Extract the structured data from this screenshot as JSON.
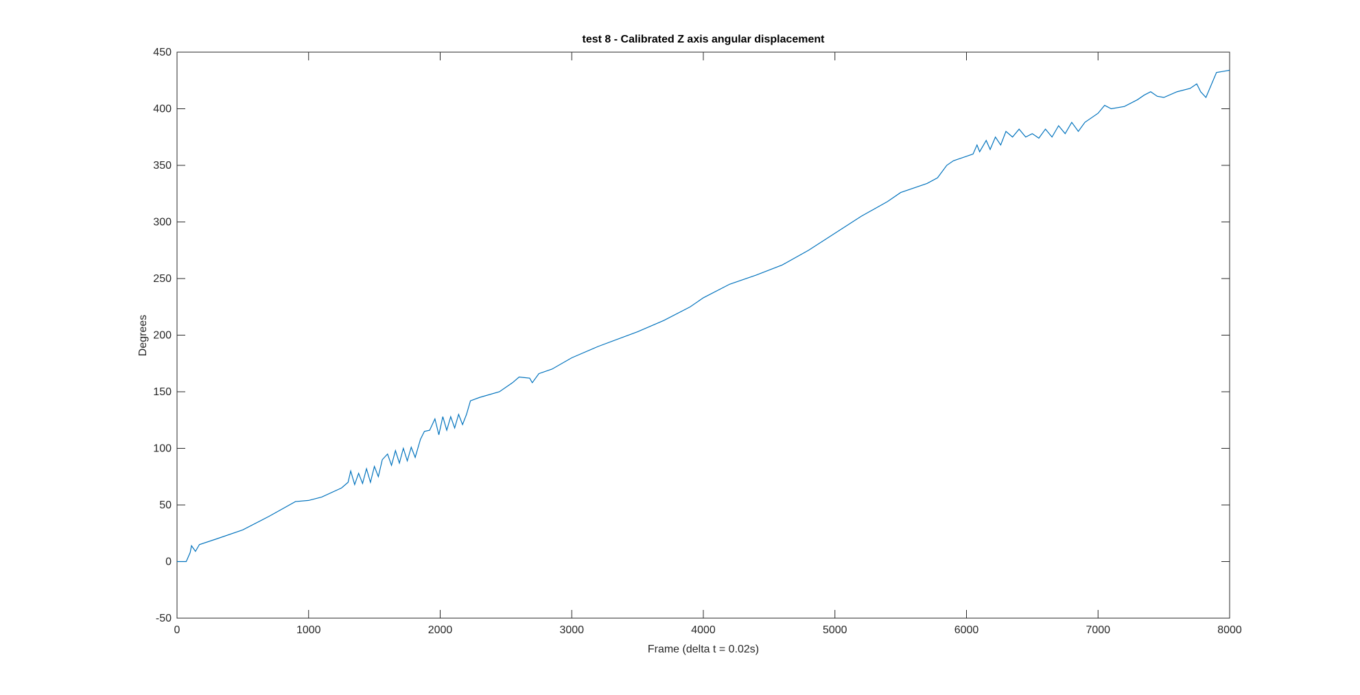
{
  "chart_data": {
    "type": "line",
    "title": "test 8 - Calibrated Z axis angular displacement",
    "x_label": "Frame (delta t = 0.02s)",
    "y_label": "Degrees",
    "xlim": [
      0,
      8000
    ],
    "xticks": [
      0,
      1000,
      2000,
      3000,
      4000,
      5000,
      6000,
      7000,
      8000
    ],
    "ylim": [
      -50,
      450
    ],
    "yticks": [
      -50,
      0,
      50,
      100,
      150,
      200,
      250,
      300,
      350,
      400,
      450
    ],
    "grid": false,
    "series": [
      {
        "color": "#0072bd",
        "x": [
          0,
          50,
          70,
          100,
          110,
          140,
          170,
          300,
          500,
          700,
          900,
          1000,
          1100,
          1250,
          1300,
          1320,
          1350,
          1380,
          1410,
          1440,
          1470,
          1500,
          1530,
          1560,
          1600,
          1630,
          1660,
          1690,
          1720,
          1750,
          1780,
          1810,
          1850,
          1880,
          1920,
          1960,
          1990,
          2020,
          2050,
          2080,
          2110,
          2140,
          2170,
          2200,
          2230,
          2300,
          2450,
          2550,
          2600,
          2680,
          2700,
          2750,
          2850,
          3000,
          3200,
          3500,
          3700,
          3900,
          4000,
          4200,
          4400,
          4600,
          4800,
          5000,
          5200,
          5400,
          5500,
          5700,
          5780,
          5850,
          5900,
          6000,
          6050,
          6080,
          6100,
          6150,
          6180,
          6220,
          6260,
          6300,
          6350,
          6400,
          6450,
          6500,
          6550,
          6600,
          6650,
          6700,
          6750,
          6800,
          6850,
          6900,
          7000,
          7050,
          7100,
          7200,
          7300,
          7350,
          7400,
          7450,
          7500,
          7600,
          7700,
          7750,
          7780,
          7820,
          7900,
          8000
        ],
        "values": [
          0,
          0,
          0,
          8,
          14,
          9,
          15,
          20,
          28,
          40,
          53,
          54,
          57,
          65,
          70,
          80,
          68,
          78,
          69,
          82,
          70,
          84,
          75,
          90,
          95,
          85,
          98,
          87,
          100,
          89,
          101,
          92,
          108,
          115,
          116,
          126,
          112,
          128,
          116,
          128,
          118,
          130,
          121,
          130,
          142,
          145,
          150,
          158,
          163,
          162,
          158,
          166,
          170,
          180,
          190,
          203,
          213,
          225,
          233,
          245,
          253,
          262,
          275,
          290,
          305,
          318,
          326,
          334,
          339,
          350,
          354,
          358,
          360,
          368,
          362,
          372,
          364,
          375,
          368,
          380,
          375,
          382,
          375,
          378,
          374,
          382,
          375,
          385,
          378,
          388,
          380,
          388,
          396,
          403,
          400,
          402,
          408,
          412,
          415,
          411,
          410,
          415,
          418,
          422,
          415,
          410,
          432,
          434
        ]
      }
    ]
  }
}
